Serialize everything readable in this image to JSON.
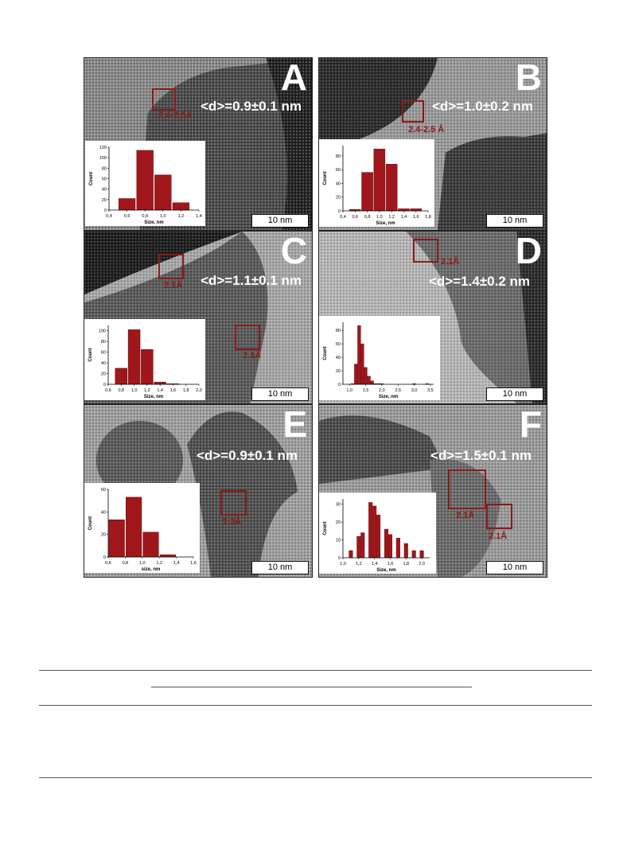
{
  "panels": [
    {
      "letter": "A",
      "mean": "<d>=0.9±0.1 nm",
      "scale": "10 nm",
      "rois": [
        "2.4-2.6Å"
      ],
      "hist": {
        "type": "bar",
        "ylabel": "Count",
        "xlabel": "Size, nm",
        "xticks": [
          "0,4",
          "0,6",
          "0,8",
          "1,0",
          "1,2",
          "1,4"
        ],
        "xlim": [
          0.4,
          1.4
        ],
        "yticks": [
          "0",
          "20",
          "40",
          "60",
          "80",
          "100",
          "120"
        ],
        "ylim": [
          0,
          120
        ],
        "bins": [
          0.6,
          0.8,
          1.0,
          1.2
        ],
        "values": [
          22,
          114,
          67,
          14
        ]
      }
    },
    {
      "letter": "B",
      "mean": "<d>=1.0±0.2 nm",
      "scale": "10 nm",
      "rois": [
        "2.4-2.5 Å"
      ],
      "hist": {
        "type": "bar",
        "ylabel": "Count",
        "xlabel": "Size, nm",
        "xticks": [
          "0,4",
          "0,6",
          "0,8",
          "1,0",
          "1,2",
          "1,4",
          "1,6",
          "1,8"
        ],
        "xlim": [
          0.4,
          1.8
        ],
        "yticks": [
          "0",
          "20",
          "40",
          "60",
          "80"
        ],
        "ylim": [
          0,
          95
        ],
        "bins": [
          0.6,
          0.8,
          1.0,
          1.2,
          1.4,
          1.6
        ],
        "values": [
          2,
          56,
          90,
          68,
          3,
          3
        ]
      }
    },
    {
      "letter": "C",
      "mean": "<d>=1.1±0.1 nm",
      "scale": "10 nm",
      "rois": [
        "2.1Å",
        "2.1Å"
      ],
      "hist": {
        "type": "bar",
        "ylabel": "Count",
        "xlabel": "Size, nm",
        "xticks": [
          "0,6",
          "0,8",
          "1,0",
          "1,2",
          "1,4",
          "1,6",
          "1,8",
          "2,0"
        ],
        "xlim": [
          0.6,
          2.0
        ],
        "yticks": [
          "0",
          "20",
          "40",
          "60",
          "80",
          "100"
        ],
        "ylim": [
          0,
          110
        ],
        "bins": [
          0.8,
          1.0,
          1.2,
          1.4,
          1.6
        ],
        "values": [
          30,
          102,
          65,
          4,
          1
        ]
      }
    },
    {
      "letter": "D",
      "mean": "<d>=1.4±0.2 nm",
      "scale": "10 nm",
      "rois": [
        "2.1Å"
      ],
      "hist": {
        "type": "bar",
        "ylabel": "Count",
        "xlabel": "Size, nm",
        "xticks": [
          "1,0",
          "1,5",
          "2,0",
          "2,5",
          "3,0",
          "3,5"
        ],
        "xlim": [
          0.8,
          3.6
        ],
        "yticks": [
          "0",
          "20",
          "40",
          "60",
          "80"
        ],
        "ylim": [
          0,
          92
        ],
        "bins": [
          1.1,
          1.2,
          1.3,
          1.4,
          1.5,
          1.6,
          1.7,
          1.8,
          1.9,
          2.0,
          3.0,
          3.4
        ],
        "values": [
          1,
          30,
          87,
          60,
          25,
          12,
          5,
          1,
          1,
          1,
          1,
          1
        ]
      }
    },
    {
      "letter": "E",
      "mean": "<d>=0.9±0.1 nm",
      "scale": "10 nm",
      "rois": [
        "2.3Å"
      ],
      "hist": {
        "type": "bar",
        "ylabel": "Count",
        "xlabel": "size, nm",
        "xticks": [
          "0,6",
          "0,8",
          "1,0",
          "1,2",
          "1,4",
          "1,6"
        ],
        "xlim": [
          0.6,
          1.6
        ],
        "yticks": [
          "0",
          "20",
          "40",
          "60"
        ],
        "ylim": [
          0,
          60
        ],
        "bins": [
          0.7,
          0.9,
          1.1,
          1.3
        ],
        "values": [
          33,
          53,
          22,
          2
        ]
      }
    },
    {
      "letter": "F",
      "mean": "<d>=1.5±0.1 nm",
      "scale": "10 nm",
      "rois": [
        "2.1Å",
        "2.1Å"
      ],
      "hist": {
        "type": "bar",
        "ylabel": "Count",
        "xlabel": "Size, nm",
        "xticks": [
          "1,0",
          "1,2",
          "1,4",
          "1,6",
          "1,8",
          "2,0"
        ],
        "xlim": [
          1.0,
          2.1
        ],
        "yticks": [
          "0",
          "10",
          "20",
          "30"
        ],
        "ylim": [
          0,
          33
        ],
        "bins": [
          1.05,
          1.1,
          1.15,
          1.2,
          1.25,
          1.3,
          1.35,
          1.4,
          1.45,
          1.5,
          1.55,
          1.6,
          1.65,
          1.7,
          1.75,
          1.8,
          1.85,
          1.9,
          1.95,
          2.0,
          2.05,
          2.1
        ],
        "values": [
          0,
          4,
          0,
          12,
          14,
          0,
          31,
          29,
          24,
          0,
          16,
          13,
          0,
          11,
          0,
          8,
          0,
          4,
          0,
          4,
          0,
          0
        ]
      }
    }
  ],
  "chart_data": [
    {
      "type": "bar",
      "categories": [
        "0,6",
        "0,8",
        "1,0",
        "1,2"
      ],
      "values": [
        22,
        114,
        67,
        14
      ],
      "xlabel": "Size, nm",
      "ylabel": "Count"
    },
    {
      "type": "bar",
      "categories": [
        "0,6",
        "0,8",
        "1,0",
        "1,2",
        "1,4",
        "1,6"
      ],
      "values": [
        2,
        56,
        90,
        68,
        3,
        3
      ],
      "xlabel": "Size, nm",
      "ylabel": "Count"
    },
    {
      "type": "bar",
      "categories": [
        "0,8",
        "1,0",
        "1,2",
        "1,4",
        "1,6"
      ],
      "values": [
        30,
        102,
        65,
        4,
        1
      ],
      "xlabel": "Size, nm",
      "ylabel": "Count"
    },
    {
      "type": "bar",
      "categories": [
        "1,1",
        "1,2",
        "1,3",
        "1,4",
        "1,5",
        "1,6",
        "1,7",
        "1,8",
        "1,9",
        "2,0",
        "3,0",
        "3,4"
      ],
      "values": [
        1,
        30,
        87,
        60,
        25,
        12,
        5,
        1,
        1,
        1,
        1,
        1
      ],
      "xlabel": "Size, nm",
      "ylabel": "Count"
    },
    {
      "type": "bar",
      "categories": [
        "0,7",
        "0,9",
        "1,1",
        "1,3"
      ],
      "values": [
        33,
        53,
        22,
        2
      ],
      "xlabel": "size, nm",
      "ylabel": "Count"
    },
    {
      "type": "bar",
      "categories": [
        "1,1",
        "1,2",
        "1,25",
        "1,35",
        "1,4",
        "1,45",
        "1,55",
        "1,6",
        "1,7",
        "1,8",
        "1,9",
        "2,0"
      ],
      "values": [
        4,
        12,
        14,
        31,
        29,
        24,
        16,
        13,
        11,
        8,
        4,
        4
      ],
      "xlabel": "Size, nm",
      "ylabel": "Count"
    }
  ]
}
